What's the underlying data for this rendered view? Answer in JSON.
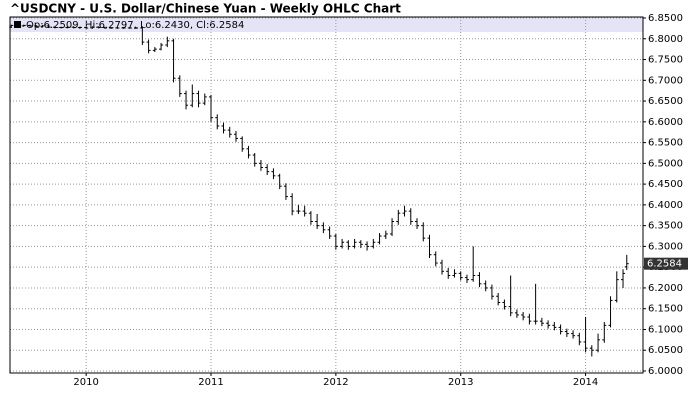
{
  "chart_data": {
    "type": "ohlc",
    "title": "^USDCNY - U.S. Dollar/Chinese Yuan - Weekly OHLC Chart",
    "header": "Op:6.2509, Hi:6.2797, Lo:6.2430, Cl:6.2584",
    "last_price": 6.2584,
    "color": "#000000",
    "grid": true,
    "xlim": [
      2009.39,
      2014.46
    ],
    "xticks": [
      2010,
      2011,
      2012,
      2013,
      2014
    ],
    "ylim": [
      6.0,
      6.85
    ],
    "yticks": [
      {
        "value": 6.0,
        "label": "6.0000"
      },
      {
        "value": 6.05,
        "label": "6.0500"
      },
      {
        "value": 6.1,
        "label": "6.1000"
      },
      {
        "value": 6.15,
        "label": "6.1500"
      },
      {
        "value": 6.2,
        "label": "6.2000"
      },
      {
        "value": 6.25,
        "label": "6.2500"
      },
      {
        "value": 6.3,
        "label": "6.3000"
      },
      {
        "value": 6.35,
        "label": "6.3500"
      },
      {
        "value": 6.4,
        "label": "6.4000"
      },
      {
        "value": 6.45,
        "label": "6.4500"
      },
      {
        "value": 6.5,
        "label": "6.5000"
      },
      {
        "value": 6.55,
        "label": "6.5500"
      },
      {
        "value": 6.6,
        "label": "6.6000"
      },
      {
        "value": 6.65,
        "label": "6.6500"
      },
      {
        "value": 6.7,
        "label": "6.7000"
      },
      {
        "value": 6.75,
        "label": "6.7500"
      },
      {
        "value": 6.8,
        "label": "6.8000"
      },
      {
        "value": 6.85,
        "label": "6.8500"
      }
    ],
    "x": [
      2009.4,
      2009.45,
      2009.5,
      2009.55,
      2009.6,
      2009.65,
      2009.7,
      2009.75,
      2009.8,
      2009.85,
      2009.9,
      2009.95,
      2010.0,
      2010.05,
      2010.1,
      2010.15,
      2010.2,
      2010.25,
      2010.3,
      2010.35,
      2010.4,
      2010.45,
      2010.5,
      2010.55,
      2010.6,
      2010.65,
      2010.7,
      2010.75,
      2010.8,
      2010.85,
      2010.9,
      2010.95,
      2011.0,
      2011.05,
      2011.1,
      2011.15,
      2011.2,
      2011.25,
      2011.3,
      2011.35,
      2011.4,
      2011.45,
      2011.5,
      2011.55,
      2011.6,
      2011.65,
      2011.7,
      2011.75,
      2011.8,
      2011.85,
      2011.9,
      2011.95,
      2012.0,
      2012.05,
      2012.1,
      2012.15,
      2012.2,
      2012.25,
      2012.3,
      2012.35,
      2012.4,
      2012.45,
      2012.5,
      2012.55,
      2012.6,
      2012.65,
      2012.7,
      2012.75,
      2012.8,
      2012.85,
      2012.9,
      2012.95,
      2013.0,
      2013.05,
      2013.1,
      2013.15,
      2013.2,
      2013.25,
      2013.3,
      2013.35,
      2013.4,
      2013.45,
      2013.5,
      2013.55,
      2013.6,
      2013.65,
      2013.7,
      2013.75,
      2013.8,
      2013.85,
      2013.9,
      2013.95,
      2014.0,
      2014.05,
      2014.1,
      2014.15,
      2014.2,
      2014.25,
      2014.3,
      2014.33
    ],
    "open": [
      6.828,
      6.832,
      6.831,
      6.832,
      6.831,
      6.83,
      6.831,
      6.828,
      6.827,
      6.827,
      6.828,
      6.827,
      6.827,
      6.826,
      6.828,
      6.827,
      6.826,
      6.826,
      6.826,
      6.826,
      6.826,
      6.826,
      6.792,
      6.772,
      6.775,
      6.785,
      6.795,
      6.705,
      6.668,
      6.64,
      6.668,
      6.645,
      6.66,
      6.61,
      6.59,
      6.58,
      6.57,
      6.56,
      6.535,
      6.52,
      6.5,
      6.49,
      6.48,
      6.47,
      6.445,
      6.42,
      6.385,
      6.385,
      6.38,
      6.36,
      6.35,
      6.34,
      6.325,
      6.3,
      6.31,
      6.3,
      6.31,
      6.305,
      6.3,
      6.31,
      6.325,
      6.33,
      6.36,
      6.38,
      6.385,
      6.36,
      6.35,
      6.32,
      6.28,
      6.26,
      6.24,
      6.23,
      6.235,
      6.225,
      6.22,
      6.23,
      6.21,
      6.2,
      6.18,
      6.165,
      6.155,
      6.14,
      6.135,
      6.13,
      6.12,
      6.12,
      6.115,
      6.11,
      6.105,
      6.095,
      6.09,
      6.085,
      6.07,
      6.055,
      6.05,
      6.075,
      6.11,
      6.17,
      6.22,
      6.2509
    ],
    "high": [
      6.834,
      6.834,
      6.834,
      6.834,
      6.833,
      6.833,
      6.833,
      6.83,
      6.829,
      6.83,
      6.83,
      6.829,
      6.829,
      6.83,
      6.83,
      6.829,
      6.828,
      6.828,
      6.828,
      6.828,
      6.828,
      6.83,
      6.798,
      6.78,
      6.79,
      6.805,
      6.8,
      6.712,
      6.675,
      6.69,
      6.675,
      6.668,
      6.665,
      6.618,
      6.598,
      6.588,
      6.578,
      6.565,
      6.542,
      6.525,
      6.508,
      6.498,
      6.488,
      6.475,
      6.452,
      6.428,
      6.4,
      6.398,
      6.385,
      6.378,
      6.358,
      6.348,
      6.33,
      6.318,
      6.315,
      6.318,
      6.315,
      6.312,
      6.318,
      6.332,
      6.338,
      6.368,
      6.388,
      6.398,
      6.392,
      6.368,
      6.358,
      6.328,
      6.288,
      6.268,
      6.248,
      6.245,
      6.24,
      6.232,
      6.3,
      6.238,
      6.218,
      6.208,
      6.188,
      6.172,
      6.23,
      6.148,
      6.142,
      6.138,
      6.21,
      6.128,
      6.122,
      6.118,
      6.112,
      6.102,
      6.098,
      6.092,
      6.13,
      6.062,
      6.09,
      6.118,
      6.18,
      6.24,
      6.245,
      6.2797
    ],
    "low": [
      6.826,
      6.829,
      6.829,
      6.829,
      6.828,
      6.828,
      6.826,
      6.825,
      6.825,
      6.825,
      6.825,
      6.825,
      6.824,
      6.824,
      6.825,
      6.824,
      6.824,
      6.824,
      6.824,
      6.824,
      6.824,
      6.785,
      6.765,
      6.768,
      6.772,
      6.78,
      6.695,
      6.66,
      6.63,
      6.635,
      6.635,
      6.64,
      6.6,
      6.582,
      6.572,
      6.562,
      6.552,
      6.528,
      6.512,
      6.492,
      6.482,
      6.472,
      6.462,
      6.438,
      6.412,
      6.375,
      6.378,
      6.372,
      6.352,
      6.342,
      6.332,
      6.318,
      6.292,
      6.295,
      6.292,
      6.295,
      6.296,
      6.29,
      6.295,
      6.305,
      6.318,
      6.325,
      6.352,
      6.372,
      6.352,
      6.342,
      6.312,
      6.272,
      6.252,
      6.232,
      6.222,
      6.225,
      6.218,
      6.212,
      6.215,
      6.202,
      6.192,
      6.172,
      6.158,
      6.148,
      6.132,
      6.128,
      6.122,
      6.112,
      6.112,
      6.108,
      6.102,
      6.098,
      6.088,
      6.082,
      6.078,
      6.062,
      6.045,
      6.035,
      6.045,
      6.068,
      6.105,
      6.165,
      6.2,
      6.243
    ],
    "close": [
      6.832,
      6.831,
      6.832,
      6.831,
      6.83,
      6.831,
      6.828,
      6.827,
      6.827,
      6.828,
      6.827,
      6.827,
      6.826,
      6.828,
      6.827,
      6.826,
      6.826,
      6.826,
      6.826,
      6.826,
      6.826,
      6.792,
      6.772,
      6.775,
      6.785,
      6.795,
      6.705,
      6.668,
      6.64,
      6.668,
      6.645,
      6.66,
      6.61,
      6.59,
      6.58,
      6.57,
      6.56,
      6.535,
      6.52,
      6.5,
      6.49,
      6.48,
      6.47,
      6.445,
      6.42,
      6.385,
      6.385,
      6.38,
      6.36,
      6.35,
      6.34,
      6.325,
      6.3,
      6.31,
      6.3,
      6.31,
      6.305,
      6.3,
      6.31,
      6.325,
      6.33,
      6.36,
      6.38,
      6.385,
      6.36,
      6.35,
      6.32,
      6.28,
      6.26,
      6.24,
      6.23,
      6.235,
      6.225,
      6.22,
      6.23,
      6.21,
      6.2,
      6.18,
      6.165,
      6.155,
      6.14,
      6.135,
      6.13,
      6.12,
      6.12,
      6.115,
      6.11,
      6.105,
      6.095,
      6.09,
      6.085,
      6.07,
      6.055,
      6.05,
      6.075,
      6.11,
      6.17,
      6.22,
      6.235,
      6.2584
    ]
  }
}
